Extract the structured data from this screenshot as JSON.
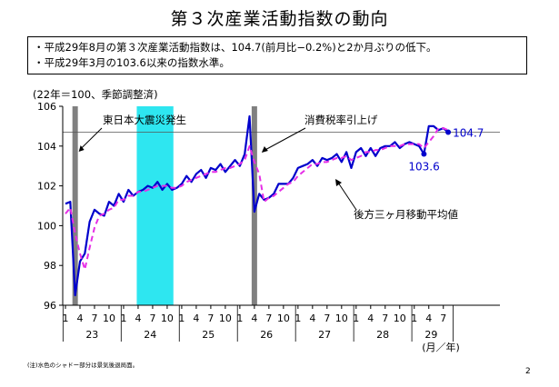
{
  "page": {
    "title": "第３次産業活動指数の動向",
    "bullets": [
      "・平成29年8月の第３次産業活動指数は、104.7(前月比−0.2%)と2か月ぶりの低下。",
      "・平成29年3月の103.6以来の指数水準。"
    ],
    "unit_label": "(22年＝100、季節調整済)",
    "note": "(注)水色のシャドー部分は景気後退局面。",
    "page_number": "2"
  },
  "chart_data": {
    "type": "line",
    "ylim": [
      96,
      106
    ],
    "yticks": [
      96,
      98,
      100,
      102,
      104,
      106
    ],
    "x_month_ticks": [
      "1",
      "4",
      "7",
      "10",
      "1",
      "4",
      "7",
      "10",
      "1",
      "4",
      "7",
      "10",
      "1",
      "4",
      "7",
      "10",
      "1",
      "4",
      "7",
      "10",
      "1",
      "4",
      "7",
      "10",
      "1",
      "4",
      "7"
    ],
    "x_year_labels": [
      "23",
      "24",
      "25",
      "26",
      "27",
      "28",
      "29"
    ],
    "x_unit": "(月／年)",
    "months": [
      "23-1",
      "23-2",
      "23-3",
      "23-4",
      "23-5",
      "23-6",
      "23-7",
      "23-8",
      "23-9",
      "23-10",
      "23-11",
      "23-12",
      "24-1",
      "24-2",
      "24-3",
      "24-4",
      "24-5",
      "24-6",
      "24-7",
      "24-8",
      "24-9",
      "24-10",
      "24-11",
      "24-12",
      "25-1",
      "25-2",
      "25-3",
      "25-4",
      "25-5",
      "25-6",
      "25-7",
      "25-8",
      "25-9",
      "25-10",
      "25-11",
      "25-12",
      "26-1",
      "26-2",
      "26-3",
      "26-4",
      "26-5",
      "26-6",
      "26-7",
      "26-8",
      "26-9",
      "26-10",
      "26-11",
      "26-12",
      "27-1",
      "27-2",
      "27-3",
      "27-4",
      "27-5",
      "27-6",
      "27-7",
      "27-8",
      "27-9",
      "27-10",
      "27-11",
      "27-12",
      "28-1",
      "28-2",
      "28-3",
      "28-4",
      "28-5",
      "28-6",
      "28-7",
      "28-8",
      "28-9",
      "28-10",
      "28-11",
      "28-12",
      "29-1",
      "29-2",
      "29-3",
      "29-4",
      "29-5",
      "29-6",
      "29-7",
      "29-8"
    ],
    "series": [
      {
        "color": "#0000cc",
        "style": "solid",
        "values": [
          101.1,
          101.2,
          96.5,
          98.2,
          98.6,
          100.2,
          100.8,
          100.6,
          100.5,
          101.2,
          101.0,
          101.6,
          101.2,
          101.8,
          101.5,
          101.7,
          101.8,
          102.0,
          101.9,
          102.2,
          101.8,
          102.1,
          101.8,
          101.9,
          102.1,
          102.5,
          102.2,
          102.6,
          102.8,
          102.4,
          102.9,
          102.8,
          103.1,
          102.7,
          103.0,
          103.3,
          103.0,
          103.6,
          105.5,
          100.7,
          101.6,
          101.3,
          101.4,
          101.6,
          102.1,
          102.1,
          102.1,
          102.4,
          102.9,
          103.0,
          103.1,
          103.3,
          103.0,
          103.4,
          103.3,
          103.4,
          103.6,
          103.2,
          103.7,
          102.9,
          103.7,
          103.9,
          103.5,
          103.9,
          103.5,
          103.9,
          104.0,
          104.0,
          104.2,
          103.9,
          104.1,
          104.2,
          104.1,
          104.0,
          103.6,
          105.0,
          105.0,
          104.8,
          104.9,
          104.7
        ]
      },
      {
        "color": "#e62ee6",
        "style": "dashed",
        "values": [
          100.6,
          100.9,
          99.6,
          98.6,
          97.8,
          98.9,
          99.9,
          100.5,
          100.6,
          100.8,
          100.9,
          101.3,
          101.3,
          101.5,
          101.5,
          101.7,
          101.7,
          101.8,
          101.9,
          102.0,
          102.0,
          102.0,
          101.9,
          101.9,
          102.0,
          102.2,
          102.3,
          102.4,
          102.5,
          102.6,
          102.7,
          102.7,
          102.8,
          102.9,
          102.9,
          103.0,
          103.1,
          103.3,
          104.0,
          103.2,
          102.6,
          101.2,
          101.4,
          101.5,
          101.7,
          101.9,
          102.1,
          102.2,
          102.5,
          102.7,
          102.9,
          103.1,
          103.1,
          103.2,
          103.2,
          103.3,
          103.4,
          103.4,
          103.5,
          103.3,
          103.4,
          103.5,
          103.7,
          103.7,
          103.8,
          103.8,
          103.9,
          104.0,
          104.0,
          104.0,
          104.1,
          104.1,
          104.1,
          104.1,
          103.9,
          104.2,
          104.5,
          104.9,
          104.9,
          104.8
        ]
      }
    ],
    "recession_period": {
      "start": "24-4",
      "end": "24-11",
      "color": "#2ee6f0"
    },
    "event_bars": [
      {
        "at": "23-3",
        "label": "東日本大震災発生"
      },
      {
        "at": "26-4",
        "label": "消費税率引上げ"
      }
    ],
    "reference_line": 104.7,
    "annotations": [
      {
        "label": "104.7",
        "at": "29-8",
        "color": "#0000cc"
      },
      {
        "label": "103.6",
        "at": "29-3",
        "color": "#0000cc"
      },
      {
        "label": "後方三ヶ月移動平均値",
        "at": "27-7"
      }
    ]
  }
}
